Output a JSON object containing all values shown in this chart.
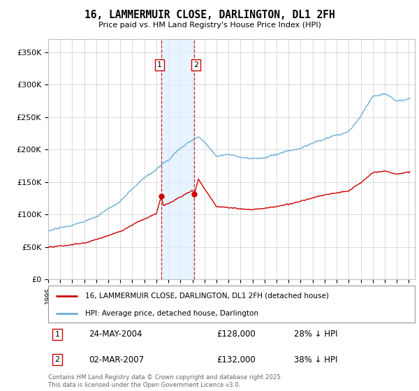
{
  "title": "16, LAMMERMUIR CLOSE, DARLINGTON, DL1 2FH",
  "subtitle": "Price paid vs. HM Land Registry's House Price Index (HPI)",
  "ylabel_ticks": [
    "£0",
    "£50K",
    "£100K",
    "£150K",
    "£200K",
    "£250K",
    "£300K",
    "£350K"
  ],
  "ylim": [
    0,
    370000
  ],
  "xlim_start": 1995.0,
  "xlim_end": 2025.5,
  "legend_line1": "16, LAMMERMUIR CLOSE, DARLINGTON, DL1 2FH (detached house)",
  "legend_line2": "HPI: Average price, detached house, Darlington",
  "sale1_date": "24-MAY-2004",
  "sale1_price": "£128,000",
  "sale1_hpi": "28% ↓ HPI",
  "sale2_date": "02-MAR-2007",
  "sale2_price": "£132,000",
  "sale2_hpi": "38% ↓ HPI",
  "copyright": "Contains HM Land Registry data © Crown copyright and database right 2025.\nThis data is licensed under the Open Government Licence v3.0.",
  "hpi_line_color": "#6baed6",
  "price_line_color": "#cc0000",
  "sale_marker_color": "#cc0000",
  "vline_color": "#cc0000",
  "shade_color": "#ddeeff",
  "background_color": "#ffffff",
  "grid_color": "#cccccc",
  "sale1_year_val": 2004.388,
  "sale2_year_val": 2007.164,
  "sale1_price_val": 128000,
  "sale2_price_val": 132000
}
